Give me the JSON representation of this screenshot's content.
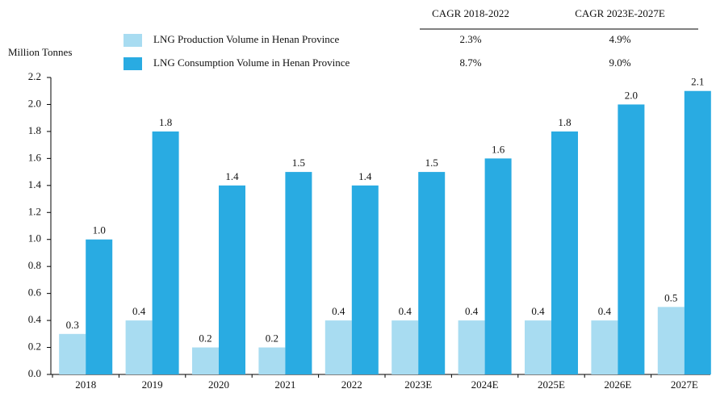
{
  "chart_data": {
    "type": "bar",
    "y_axis_label": "Million Tonnes",
    "categories": [
      "2018",
      "2019",
      "2020",
      "2021",
      "2022",
      "2023E",
      "2024E",
      "2025E",
      "2026E",
      "2027E"
    ],
    "series": [
      {
        "name": "LNG Production Volume in Henan Province",
        "color": "#a8dcf1",
        "values": [
          0.3,
          0.4,
          0.2,
          0.2,
          0.4,
          0.4,
          0.4,
          0.4,
          0.4,
          0.5
        ],
        "value_labels": [
          "0.3",
          "0.4",
          "0.2",
          "0.2",
          "0.4",
          "0.4",
          "0.4",
          "0.4",
          "0.4",
          "0.5"
        ]
      },
      {
        "name": "LNG Consumption Volume in Henan Province",
        "color": "#29abe2",
        "values": [
          1.0,
          1.8,
          1.4,
          1.5,
          1.4,
          1.5,
          1.6,
          1.8,
          2.0,
          2.1
        ],
        "value_labels": [
          "1.0",
          "1.8",
          "1.4",
          "1.5",
          "1.4",
          "1.5",
          "1.6",
          "1.8",
          "2.0",
          "2.1"
        ]
      }
    ],
    "ylim": [
      0,
      2.2
    ],
    "yticks": [
      {
        "value": 0,
        "label": "0.0"
      },
      0.2,
      0.4,
      0.6,
      0.8,
      {
        "value": 1,
        "label": "1.0"
      },
      1.2,
      1.4,
      1.6,
      1.8,
      {
        "value": 2,
        "label": "2.0"
      },
      2.2
    ],
    "cagr_table": {
      "headers": [
        "CAGR 2018-2022",
        "CAGR 2023E-2027E"
      ],
      "rows": [
        [
          "2.3%",
          "4.9%"
        ],
        [
          "8.7%",
          "9.0%"
        ]
      ]
    }
  }
}
